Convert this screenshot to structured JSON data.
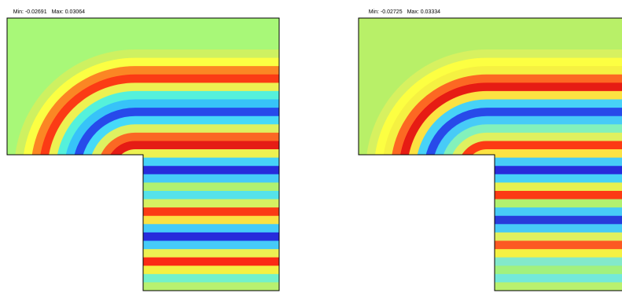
{
  "plots": [
    {
      "min_label": "Min: -0.02691",
      "max_label": "Max: 0.03064",
      "min_value": -0.02691,
      "max_value": 0.03064,
      "background_color": "#a8f878",
      "bands": [
        {
          "level": 0.55,
          "color": "#d0f060"
        },
        {
          "level": 0.7,
          "color": "#ffff40"
        },
        {
          "level": 0.9,
          "color": "#ff8020"
        },
        {
          "level": 0.95,
          "color": "#ff3010"
        },
        {
          "level": 0.6,
          "color": "#f0f050"
        },
        {
          "level": 0.35,
          "color": "#50f0e0"
        },
        {
          "level": 0.25,
          "color": "#30c0ff"
        },
        {
          "level": 0.1,
          "color": "#2040f0"
        },
        {
          "level": 0.3,
          "color": "#40d8ff"
        },
        {
          "level": 0.6,
          "color": "#e0f060"
        },
        {
          "level": 0.9,
          "color": "#ff6020"
        },
        {
          "level": 1.0,
          "color": "#e81010"
        },
        {
          "level": 0.6,
          "color": "#f0f050"
        },
        {
          "level": 0.3,
          "color": "#40d0ff"
        },
        {
          "level": 0.05,
          "color": "#2020e0"
        },
        {
          "level": 0.3,
          "color": "#40c8ff"
        },
        {
          "level": 0.5,
          "color": "#b0f070"
        },
        {
          "level": 0.3,
          "color": "#50e0f0"
        },
        {
          "level": 0.6,
          "color": "#d8f060"
        },
        {
          "level": 0.95,
          "color": "#ff3010"
        },
        {
          "level": 0.7,
          "color": "#ffe040"
        },
        {
          "level": 0.3,
          "color": "#40c8ff"
        },
        {
          "level": 0.05,
          "color": "#2020e0"
        },
        {
          "level": 0.3,
          "color": "#40c8ff"
        },
        {
          "level": 0.6,
          "color": "#f0f050"
        },
        {
          "level": 0.95,
          "color": "#ff2010"
        },
        {
          "level": 0.65,
          "color": "#f8f040"
        },
        {
          "level": 0.4,
          "color": "#70f0d0"
        },
        {
          "level": 0.55,
          "color": "#b8f070"
        }
      ]
    },
    {
      "min_label": "Min: -0.02725",
      "max_label": "Max: 0.03334",
      "min_value": -0.02725,
      "max_value": 0.03334,
      "background_color": "#b8f068",
      "bands": [
        {
          "level": 0.6,
          "color": "#d8f060"
        },
        {
          "level": 0.7,
          "color": "#ffff40"
        },
        {
          "level": 0.65,
          "color": "#f8f040"
        },
        {
          "level": 0.9,
          "color": "#ff6020"
        },
        {
          "level": 1.0,
          "color": "#e81010"
        },
        {
          "level": 0.7,
          "color": "#ffe040"
        },
        {
          "level": 0.3,
          "color": "#40d0ff"
        },
        {
          "level": 0.1,
          "color": "#2040f0"
        },
        {
          "level": 0.3,
          "color": "#40c8ff"
        },
        {
          "level": 0.45,
          "color": "#80f0c0"
        },
        {
          "level": 0.6,
          "color": "#e0f060"
        },
        {
          "level": 0.95,
          "color": "#ff3010"
        },
        {
          "level": 0.7,
          "color": "#ffe040"
        },
        {
          "level": 0.3,
          "color": "#40c8ff"
        },
        {
          "level": 0.05,
          "color": "#2020e0"
        },
        {
          "level": 0.3,
          "color": "#40d0ff"
        },
        {
          "level": 0.6,
          "color": "#e8f050"
        },
        {
          "level": 0.95,
          "color": "#ff3010"
        },
        {
          "level": 0.5,
          "color": "#b0f070"
        },
        {
          "level": 0.3,
          "color": "#40c8ff"
        },
        {
          "level": 0.05,
          "color": "#2030e0"
        },
        {
          "level": 0.3,
          "color": "#40c8ff"
        },
        {
          "level": 0.6,
          "color": "#e0f060"
        },
        {
          "level": 0.9,
          "color": "#ff5020"
        },
        {
          "level": 0.65,
          "color": "#f8f040"
        },
        {
          "level": 0.45,
          "color": "#80e8d0"
        },
        {
          "level": 0.5,
          "color": "#a0f080"
        },
        {
          "level": 0.4,
          "color": "#70e8e0"
        },
        {
          "level": 0.55,
          "color": "#b8f070"
        }
      ]
    }
  ],
  "outline_color": "#000000"
}
